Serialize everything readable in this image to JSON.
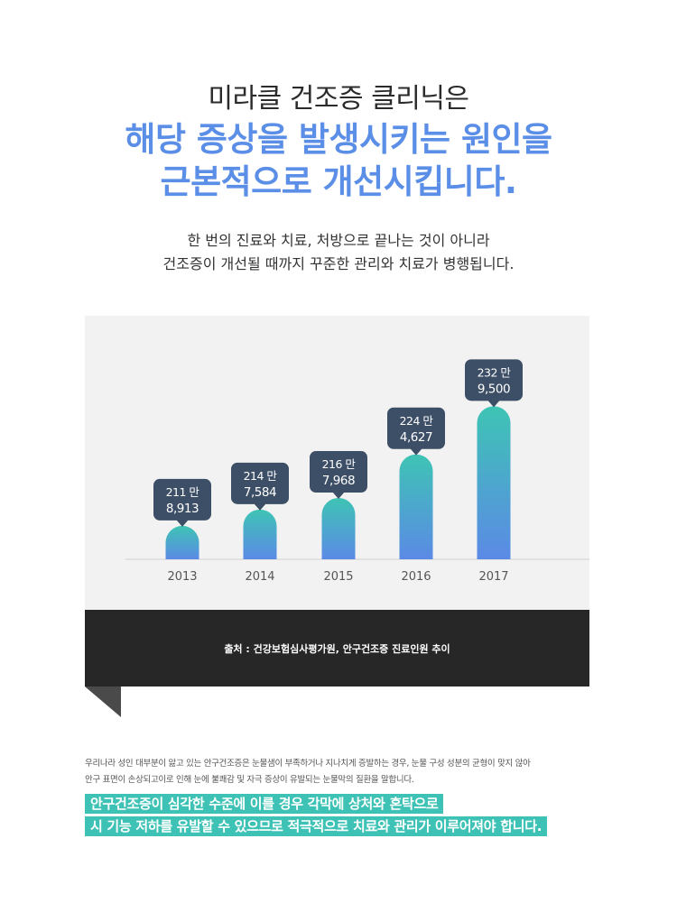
{
  "heading": {
    "line1": "미라클 건조증 클리닉은",
    "line2": "해당 증상을 발생시키는 원인을",
    "line3": "근본적으로 개선시킵니다."
  },
  "intro": {
    "line1": "한 번의 진료와 치료, 처방으로 끝나는 것이 아니라",
    "line2": "건조증이 개선될 때까지 꾸준한 관리와 치료가 병행됩니다."
  },
  "colors": {
    "accent_blue": "#5b8ee6",
    "accent_teal": "#3dc2b5",
    "bar_top": "#3ec4b4",
    "bar_bottom": "#5b8ae6",
    "tooltip": "#3d4f66",
    "panel": "#f2f2f2",
    "source_bar": "#272727"
  },
  "chart_data": {
    "type": "bar",
    "categories": [
      "2013",
      "2014",
      "2015",
      "2016",
      "2017"
    ],
    "values": [
      2118913,
      2147584,
      2167968,
      2244627,
      2329500
    ],
    "data_labels": [
      {
        "top": "211 만",
        "bottom": "8,913"
      },
      {
        "top": "214 만",
        "bottom": "7,584"
      },
      {
        "top": "216 만",
        "bottom": "7,968"
      },
      {
        "top": "224 만",
        "bottom": "4,627"
      },
      {
        "top": "232 만",
        "bottom": "9,500"
      }
    ],
    "title": "",
    "xlabel": "",
    "ylabel": "",
    "ylim": [
      2060000,
      2330000
    ],
    "grid": false,
    "legend": "none"
  },
  "source": {
    "text": "출처 : 건강보험심사평가원, 안구건조증 진료인원 추이"
  },
  "description": {
    "line1": "우리나라 성인 대부분이 앓고 있는 안구건조증은 눈물샘이 부족하거나 지나치게 증발하는 경우, 눈물 구성 성분의 균형이 맞지 않아",
    "line2": "안구 표면이 손상되고이로 인해 눈에 불쾌감 및 자극 증상이 유발되는 눈물막의 질환을 말합니다."
  },
  "highlight": {
    "line1": "안구건조증이 심각한 수준에 이를 경우 각막에 상처와 혼탁으로",
    "line2": "시 기능 저하를 유발할 수 있으므로 적극적으로 치료와 관리가 이루어져야 합니다."
  }
}
